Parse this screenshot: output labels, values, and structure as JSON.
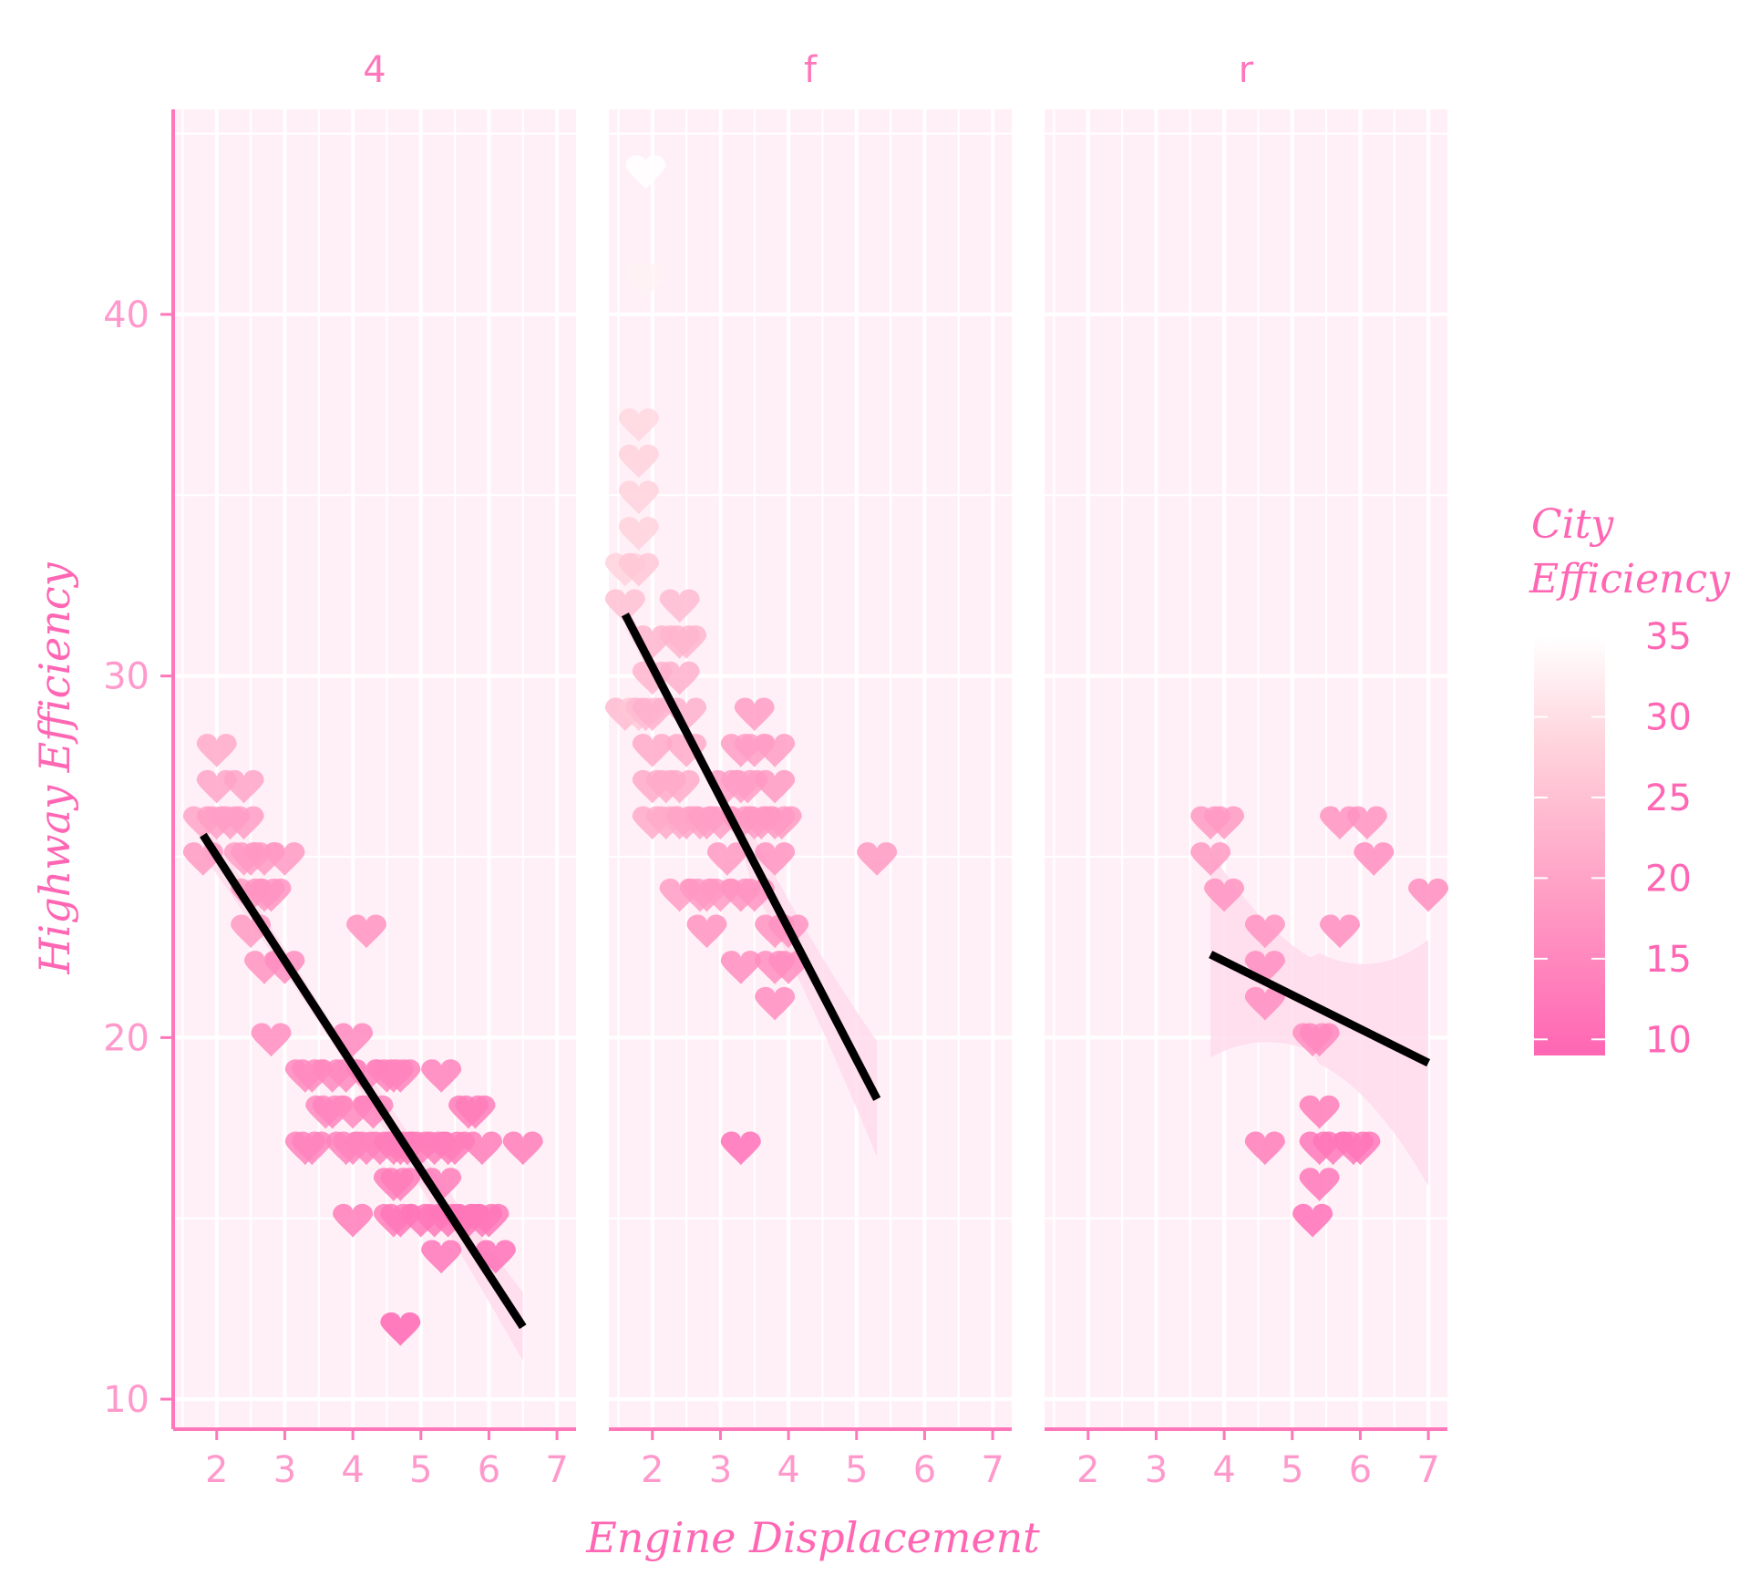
{
  "chart_data": {
    "type": "scatter",
    "facet_by": "drive",
    "xlabel": "Engine Displacement",
    "ylabel": "Highway Efficiency",
    "xlim": [
      1.36,
      7.28
    ],
    "ylim": [
      9.17,
      45.67
    ],
    "x_ticks": [
      2,
      3,
      4,
      5,
      6,
      7
    ],
    "y_ticks": [
      10,
      20,
      30,
      40
    ],
    "grid": true,
    "marker": "heart",
    "color_legend": {
      "title_lines": [
        "City",
        "Efficiency"
      ],
      "ticks": [
        10,
        15,
        20,
        25,
        30,
        35
      ],
      "range": [
        9,
        35
      ],
      "low_color": "#ff66b3",
      "high_color": "#ffffff",
      "placement": "right"
    },
    "colors": {
      "axis": "#ff77bb",
      "panel_bg": "#fff0f7",
      "grid": "#ffffff",
      "fit_line": "#000000",
      "ribbon": "#ffd6e8"
    },
    "panels": [
      {
        "label": "4",
        "points": [
          [
            1.8,
            26,
            20
          ],
          [
            1.8,
            25,
            18
          ],
          [
            2.0,
            28,
            21
          ],
          [
            2.0,
            27,
            20
          ],
          [
            2.0,
            26,
            19
          ],
          [
            2.2,
            26,
            19
          ],
          [
            2.4,
            27,
            20
          ],
          [
            2.4,
            26,
            19
          ],
          [
            2.4,
            25,
            19
          ],
          [
            2.5,
            25,
            18
          ],
          [
            2.5,
            24,
            18
          ],
          [
            2.5,
            23,
            18
          ],
          [
            2.7,
            25,
            18
          ],
          [
            2.7,
            24,
            17
          ],
          [
            2.7,
            22,
            17
          ],
          [
            2.8,
            24,
            17
          ],
          [
            2.8,
            20,
            16
          ],
          [
            3.0,
            25,
            18
          ],
          [
            3.0,
            22,
            16
          ],
          [
            3.3,
            19,
            15
          ],
          [
            3.3,
            17,
            14
          ],
          [
            3.4,
            17,
            14
          ],
          [
            3.4,
            19,
            15
          ],
          [
            3.6,
            18,
            15
          ],
          [
            3.7,
            19,
            15
          ],
          [
            3.7,
            18,
            14
          ],
          [
            3.9,
            17,
            14
          ],
          [
            3.9,
            19,
            15
          ],
          [
            4.0,
            20,
            15
          ],
          [
            4.0,
            18,
            15
          ],
          [
            4.0,
            17,
            14
          ],
          [
            4.0,
            15,
            13
          ],
          [
            4.2,
            23,
            17
          ],
          [
            4.2,
            19,
            14
          ],
          [
            4.2,
            17,
            14
          ],
          [
            4.3,
            18,
            14
          ],
          [
            4.4,
            17,
            14
          ],
          [
            4.5,
            19,
            14
          ],
          [
            4.6,
            19,
            14
          ],
          [
            4.6,
            17,
            13
          ],
          [
            4.6,
            16,
            13
          ],
          [
            4.6,
            15,
            13
          ],
          [
            4.7,
            19,
            14
          ],
          [
            4.7,
            17,
            13
          ],
          [
            4.7,
            16,
            13
          ],
          [
            4.7,
            15,
            12
          ],
          [
            4.7,
            12,
            9
          ],
          [
            4.8,
            17,
            13
          ],
          [
            5.0,
            17,
            13
          ],
          [
            5.0,
            15,
            12
          ],
          [
            5.2,
            17,
            13
          ],
          [
            5.2,
            15,
            12
          ],
          [
            5.3,
            19,
            14
          ],
          [
            5.3,
            16,
            13
          ],
          [
            5.3,
            14,
            12
          ],
          [
            5.4,
            17,
            13
          ],
          [
            5.4,
            15,
            12
          ],
          [
            5.5,
            17,
            13
          ],
          [
            5.6,
            15,
            12
          ],
          [
            5.7,
            18,
            13
          ],
          [
            5.7,
            15,
            12
          ],
          [
            5.8,
            18,
            13
          ],
          [
            5.9,
            17,
            13
          ],
          [
            5.9,
            15,
            12
          ],
          [
            6.0,
            15,
            12
          ],
          [
            6.1,
            14,
            11
          ],
          [
            6.5,
            17,
            13
          ]
        ],
        "fit": {
          "x": [
            1.8,
            6.5
          ],
          "y": [
            25.6,
            12.0
          ],
          "ci_halfwidth": [
            0.7,
            1.2
          ]
        }
      },
      {
        "label": "f",
        "points": [
          [
            1.6,
            33,
            28
          ],
          [
            1.6,
            32,
            25
          ],
          [
            1.6,
            29,
            24
          ],
          [
            1.8,
            37,
            29
          ],
          [
            1.8,
            36,
            28
          ],
          [
            1.8,
            35,
            28
          ],
          [
            1.8,
            34,
            28
          ],
          [
            1.8,
            33,
            26
          ],
          [
            1.8,
            29,
            26
          ],
          [
            1.9,
            44,
            35
          ],
          [
            1.9,
            41,
            33
          ],
          [
            1.9,
            29,
            24
          ],
          [
            2.0,
            31,
            23
          ],
          [
            2.0,
            30,
            23
          ],
          [
            2.0,
            29,
            22
          ],
          [
            2.0,
            28,
            21
          ],
          [
            2.0,
            27,
            21
          ],
          [
            2.0,
            26,
            21
          ],
          [
            2.2,
            27,
            21
          ],
          [
            2.2,
            26,
            21
          ],
          [
            2.4,
            32,
            24
          ],
          [
            2.4,
            31,
            23
          ],
          [
            2.4,
            30,
            22
          ],
          [
            2.4,
            27,
            21
          ],
          [
            2.4,
            26,
            21
          ],
          [
            2.4,
            24,
            19
          ],
          [
            2.5,
            31,
            23
          ],
          [
            2.5,
            29,
            22
          ],
          [
            2.5,
            28,
            21
          ],
          [
            2.5,
            26,
            20
          ],
          [
            2.7,
            26,
            20
          ],
          [
            2.7,
            24,
            18
          ],
          [
            2.8,
            26,
            19
          ],
          [
            2.8,
            24,
            18
          ],
          [
            2.8,
            23,
            17
          ],
          [
            3.0,
            26,
            19
          ],
          [
            3.0,
            24,
            18
          ],
          [
            3.1,
            27,
            19
          ],
          [
            3.1,
            25,
            18
          ],
          [
            3.3,
            28,
            19
          ],
          [
            3.3,
            27,
            19
          ],
          [
            3.3,
            26,
            18
          ],
          [
            3.3,
            24,
            17
          ],
          [
            3.3,
            22,
            16
          ],
          [
            3.3,
            17,
            11
          ],
          [
            3.4,
            27,
            19
          ],
          [
            3.5,
            29,
            19
          ],
          [
            3.5,
            28,
            19
          ],
          [
            3.5,
            26,
            18
          ],
          [
            3.5,
            24,
            17
          ],
          [
            3.6,
            26,
            18
          ],
          [
            3.8,
            28,
            19
          ],
          [
            3.8,
            27,
            18
          ],
          [
            3.8,
            26,
            18
          ],
          [
            3.8,
            25,
            17
          ],
          [
            3.8,
            23,
            17
          ],
          [
            3.8,
            22,
            16
          ],
          [
            3.8,
            21,
            16
          ],
          [
            3.9,
            26,
            18
          ],
          [
            4.0,
            23,
            17
          ],
          [
            4.0,
            22,
            16
          ],
          [
            5.3,
            25,
            18
          ]
        ],
        "fit": {
          "x": [
            1.6,
            5.3
          ],
          "y": [
            31.7,
            18.3
          ],
          "ci_halfwidth": [
            0.6,
            2.6
          ]
        }
      },
      {
        "label": "r",
        "points": [
          [
            3.8,
            26,
            18
          ],
          [
            3.8,
            25,
            18
          ],
          [
            4.0,
            26,
            18
          ],
          [
            4.0,
            24,
            17
          ],
          [
            4.6,
            23,
            17
          ],
          [
            4.6,
            22,
            16
          ],
          [
            4.6,
            21,
            16
          ],
          [
            4.6,
            17,
            13
          ],
          [
            5.3,
            20,
            16
          ],
          [
            5.4,
            20,
            15
          ],
          [
            5.4,
            18,
            13
          ],
          [
            5.4,
            17,
            12
          ],
          [
            5.4,
            16,
            12
          ],
          [
            5.3,
            15,
            11
          ],
          [
            5.6,
            17,
            12
          ],
          [
            5.7,
            26,
            17
          ],
          [
            5.7,
            23,
            16
          ],
          [
            5.9,
            17,
            12
          ],
          [
            6.1,
            26,
            17
          ],
          [
            6.2,
            25,
            16
          ],
          [
            6.0,
            17,
            12
          ],
          [
            7.0,
            24,
            16
          ]
        ],
        "fit": {
          "x": [
            3.8,
            7.0
          ],
          "y": [
            22.3,
            19.3
          ],
          "ci_halfwidth": [
            3.1,
            3.7
          ]
        }
      }
    ]
  }
}
